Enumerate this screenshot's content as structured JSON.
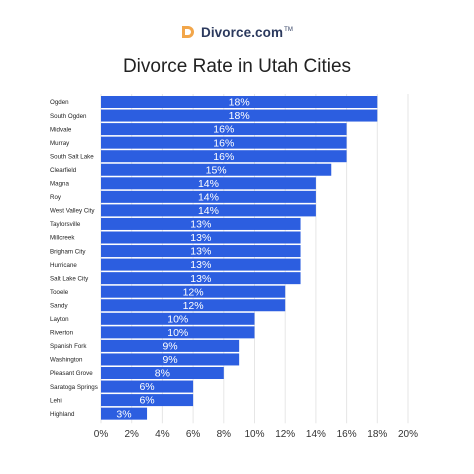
{
  "brand": {
    "name": "Divorce.com",
    "trademark": "TM"
  },
  "chart_data": {
    "type": "bar",
    "orientation": "horizontal",
    "title": "Divorce Rate in Utah Cities",
    "categories": [
      "Ogden",
      "South Ogden",
      "Midvale",
      "Murray",
      "South Salt Lake",
      "Clearfield",
      "Magna",
      "Roy",
      "West Valley City",
      "Taylorsville",
      "Millcreek",
      "Brigham City",
      "Hurricane",
      "Salt Lake City",
      "Tooele",
      "Sandy",
      "Layton",
      "Riverton",
      "Spanish Fork",
      "Washington",
      "Pleasant Grove",
      "Saratoga Springs",
      "Lehi",
      "Highland"
    ],
    "values": [
      18,
      18,
      16,
      16,
      16,
      15,
      14,
      14,
      14,
      13,
      13,
      13,
      13,
      13,
      12,
      12,
      10,
      10,
      9,
      9,
      8,
      6,
      6,
      3
    ],
    "value_labels": [
      "18%",
      "18%",
      "16%",
      "16%",
      "16%",
      "15%",
      "14%",
      "14%",
      "14%",
      "13%",
      "13%",
      "13%",
      "13%",
      "13%",
      "12%",
      "12%",
      "10%",
      "10%",
      "9%",
      "9%",
      "8%",
      "6%",
      "6%",
      "3%"
    ],
    "xlim": [
      0,
      20
    ],
    "xticks": [
      0,
      2,
      4,
      6,
      8,
      10,
      12,
      14,
      16,
      18,
      20
    ],
    "xtick_labels": [
      "0%",
      "2%",
      "4%",
      "6%",
      "8%",
      "10%",
      "12%",
      "14%",
      "16%",
      "18%",
      "20%"
    ],
    "xlabel": "",
    "ylabel": "",
    "grid": true,
    "bar_color": "#2c5ee0",
    "grid_color": "#e6e6e6"
  }
}
